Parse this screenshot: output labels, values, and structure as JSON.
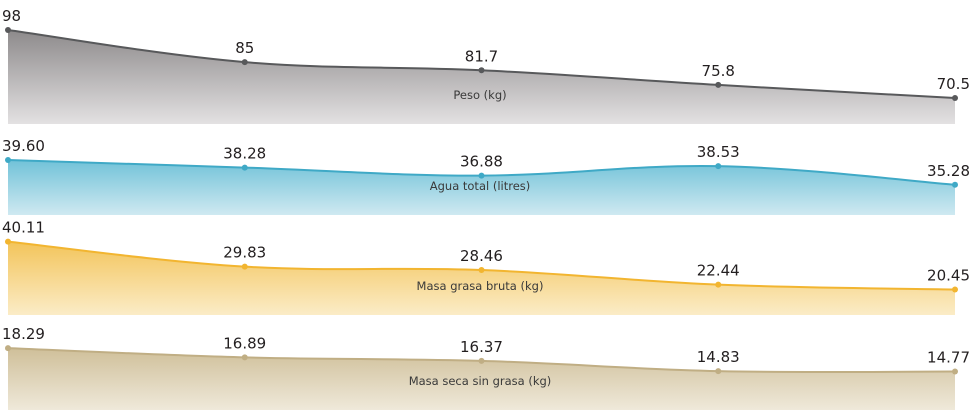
{
  "chart_data": [
    {
      "type": "area",
      "title": "Peso (kg)",
      "x": [
        1,
        2,
        3,
        4,
        5
      ],
      "values": [
        98,
        85,
        81.7,
        75.8,
        70.5
      ],
      "value_labels": [
        "98",
        "85",
        "81.7",
        "75.8",
        "70.5"
      ],
      "ylim": [
        60,
        100
      ],
      "colors": {
        "line": "#58595b",
        "marker": "#58595b",
        "fill_top": "#8d8a8b",
        "fill_bottom": "#e3e1e2"
      }
    },
    {
      "type": "area",
      "title": "Agua total (litres)",
      "x": [
        1,
        2,
        3,
        4,
        5
      ],
      "values": [
        39.6,
        38.28,
        36.88,
        38.53,
        35.28
      ],
      "value_labels": [
        "39.60",
        "38.28",
        "36.88",
        "38.53",
        "35.28"
      ],
      "ylim": [
        30,
        41
      ],
      "colors": {
        "line": "#3fa9c6",
        "marker": "#3fa9c6",
        "fill_top": "#71c2d8",
        "fill_bottom": "#cfe9f1"
      }
    },
    {
      "type": "area",
      "title": "Masa grasa bruta (kg)",
      "x": [
        1,
        2,
        3,
        4,
        5
      ],
      "values": [
        40.11,
        29.83,
        28.46,
        22.44,
        20.45
      ],
      "value_labels": [
        "40.11",
        "29.83",
        "28.46",
        "22.44",
        "20.45"
      ],
      "ylim": [
        10,
        42
      ],
      "colors": {
        "line": "#f2b530",
        "marker": "#f2b530",
        "fill_top": "#f3c45a",
        "fill_bottom": "#fbecc7"
      }
    },
    {
      "type": "area",
      "title": "Masa seca sin grasa (kg)",
      "x": [
        1,
        2,
        3,
        4,
        5
      ],
      "values": [
        18.29,
        16.89,
        16.37,
        14.83,
        14.77
      ],
      "value_labels": [
        "18.29",
        "16.89",
        "16.37",
        "14.83",
        "14.77"
      ],
      "ylim": [
        9,
        18.6
      ],
      "colors": {
        "line": "#c0ae84",
        "marker": "#c0ae84",
        "fill_top": "#cfbf99",
        "fill_bottom": "#efe9da"
      }
    }
  ]
}
